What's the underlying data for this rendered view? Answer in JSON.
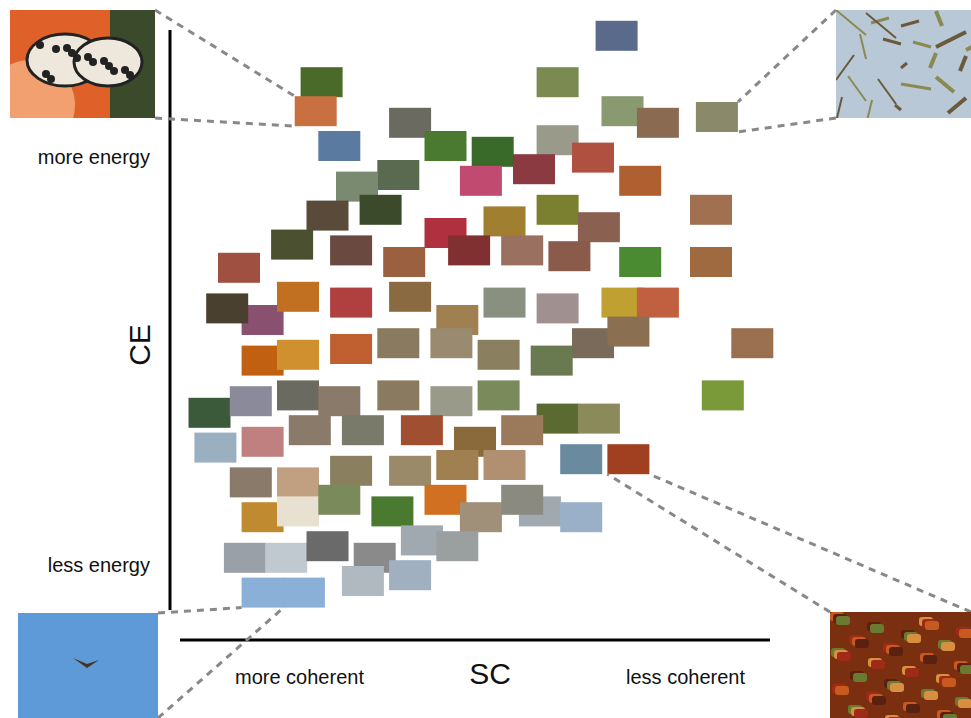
{
  "chart_data": {
    "type": "scatter",
    "xlabel": "SC",
    "ylabel": "CE",
    "xlabel_low": "more coherent",
    "xlabel_high": "less coherent",
    "ylabel_low": "less energy",
    "ylabel_high": "more energy",
    "xlim": [
      0,
      100
    ],
    "ylim": [
      0,
      100
    ],
    "tick_labels": false,
    "marker": "square",
    "x": [
      74,
      24,
      23,
      64,
      75,
      81,
      91,
      27,
      39,
      45,
      53,
      64,
      70,
      60,
      51,
      37,
      30,
      78,
      90,
      90,
      25,
      34,
      45,
      55,
      64,
      71,
      78,
      10,
      19,
      29,
      38,
      49,
      58,
      66,
      14,
      8,
      20,
      29,
      39,
      47,
      55,
      64,
      75,
      81,
      70,
      76,
      97,
      92,
      14,
      20,
      29,
      37,
      46,
      54,
      63,
      5,
      12,
      20,
      27,
      37,
      46,
      54,
      64,
      71,
      76,
      68,
      6,
      14,
      22,
      31,
      41,
      50,
      58,
      12,
      20,
      29,
      39,
      47,
      55,
      61,
      68,
      14,
      20,
      27,
      36,
      45,
      51,
      58,
      11,
      18,
      25,
      33,
      41,
      47,
      14,
      21,
      31,
      39
    ],
    "values": [
      99,
      91,
      86,
      91,
      86,
      84,
      85,
      80,
      84,
      80,
      79,
      81,
      78,
      76,
      74,
      75,
      73,
      74,
      69,
      60,
      68,
      69,
      65,
      67,
      69,
      66,
      60,
      59,
      63,
      62,
      60,
      62,
      62,
      61,
      50,
      52,
      54,
      53,
      54,
      50,
      53,
      52,
      53,
      53,
      46,
      48,
      46,
      37,
      43,
      44,
      45,
      46,
      46,
      44,
      43,
      34,
      36,
      37,
      36,
      37,
      36,
      37,
      33,
      33,
      26,
      26,
      28,
      29,
      31,
      31,
      31,
      29,
      31,
      22,
      22,
      24,
      24,
      25,
      25,
      17,
      16,
      16,
      17,
      19,
      17,
      19,
      16,
      19,
      9,
      9,
      11,
      9,
      12,
      11,
      3,
      3,
      5,
      6
    ],
    "colors": [
      "#5a6a8a",
      "#4a6a2a",
      "#c87040",
      "#7a8a50",
      "#8a9a70",
      "#8a6a50",
      "#8a8a6a",
      "#5a7aa0",
      "#6a6a60",
      "#4a7a30",
      "#3a6a2a",
      "#9a9a8a",
      "#b05040",
      "#8a3a40",
      "#c04a70",
      "#5a6a50",
      "#7a8a70",
      "#b06030",
      "#a07050",
      "#a06a40",
      "#5a4a3a",
      "#3a4a2a",
      "#b03040",
      "#a08030",
      "#7a8030",
      "#8a6050",
      "#4a8a30",
      "#a05040",
      "#4a5030",
      "#6a4a40",
      "#9a6040",
      "#803030",
      "#9a7060",
      "#8a5a4a",
      "#8a5070",
      "#4a4030",
      "#c07020",
      "#b04040",
      "#8a6a40",
      "#a08050",
      "#8a9080",
      "#a09090",
      "#c0a030",
      "#c06040",
      "#7a6a5a",
      "#8a7050",
      "#9a7050",
      "#7a9a3a",
      "#c06010",
      "#d09030",
      "#c06030",
      "#8a7a60",
      "#9a8a70",
      "#8a8060",
      "#6a7a50",
      "#3a5a3a",
      "#8a8a9a",
      "#6a6a60",
      "#8a7a6a",
      "#8a7a60",
      "#9a9a8a",
      "#7a8a5a",
      "#5a6a30",
      "#8a8a5a",
      "#a04020",
      "#6a8aa0",
      "#9ab0c0",
      "#c08080",
      "#8a7a6a",
      "#7a7a6a",
      "#a05030",
      "#8a6a3a",
      "#9a7a5a",
      "#8a7a6a",
      "#c0a080",
      "#8a8060",
      "#9a8a6a",
      "#a08050",
      "#b09070",
      "#a0a8b0",
      "#9ab0c8",
      "#c08a30",
      "#e8e0d0",
      "#7a8a5a",
      "#4a7a30",
      "#d07020",
      "#a0907a",
      "#8a8a80",
      "#9aa0a8",
      "#c0c8d0",
      "#6a6a6a",
      "#8a8a8a",
      "#a0a8b0",
      "#9aa0a0",
      "#8ab0d8",
      "#8ab0d8",
      "#b0b8c0",
      "#a0b0c0"
    ]
  }
}
